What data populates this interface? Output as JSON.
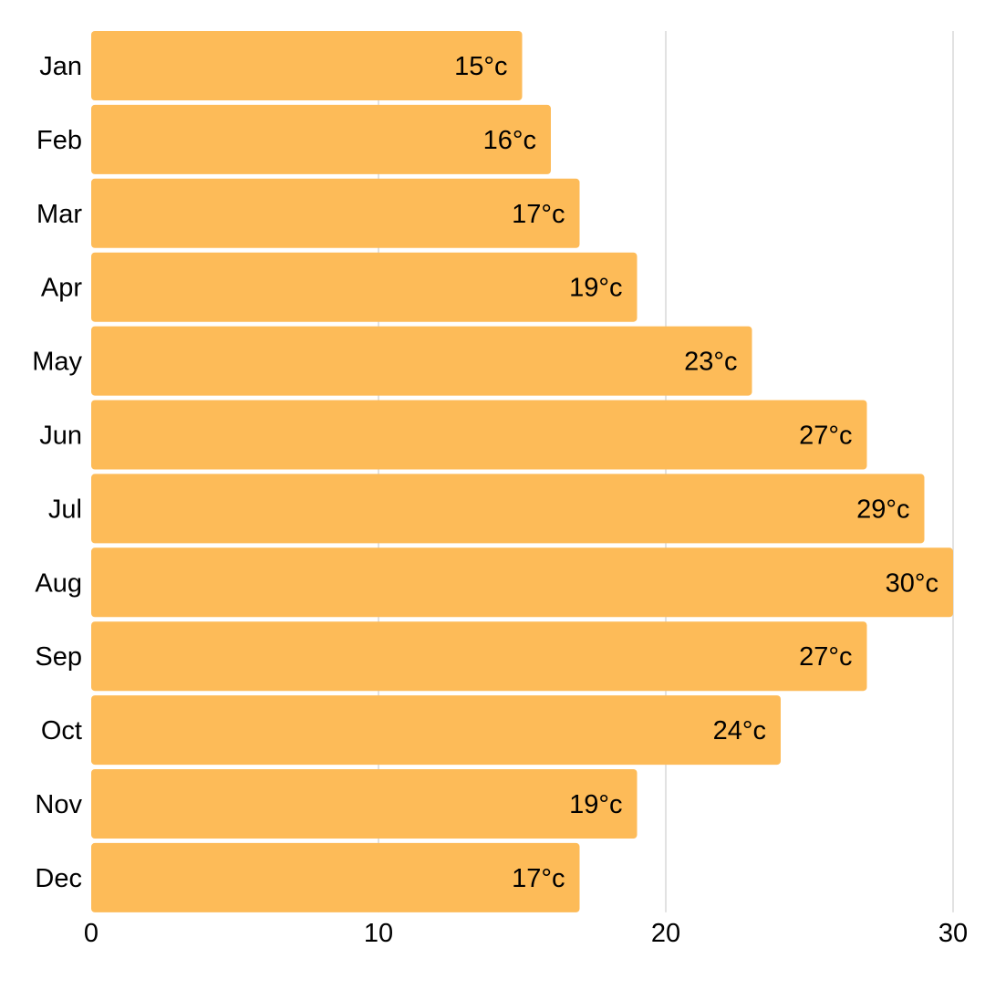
{
  "chart_data": {
    "type": "bar",
    "orientation": "horizontal",
    "categories": [
      "Jan",
      "Feb",
      "Mar",
      "Apr",
      "May",
      "Jun",
      "Jul",
      "Aug",
      "Sep",
      "Oct",
      "Nov",
      "Dec"
    ],
    "values": [
      15,
      16,
      17,
      19,
      23,
      27,
      29,
      30,
      27,
      24,
      19,
      17
    ],
    "data_labels": [
      "15°c",
      "16°c",
      "17°c",
      "19°c",
      "23°c",
      "27°c",
      "29°c",
      "30°c",
      "27°c",
      "24°c",
      "19°c",
      "17°c"
    ],
    "x_ticks": [
      "0",
      "10",
      "20",
      "30"
    ],
    "xlim": [
      0,
      30
    ],
    "title": "",
    "xlabel": "",
    "ylabel": "",
    "grid": "vertical",
    "legend": "none",
    "bar_color": "#FDBB58"
  }
}
